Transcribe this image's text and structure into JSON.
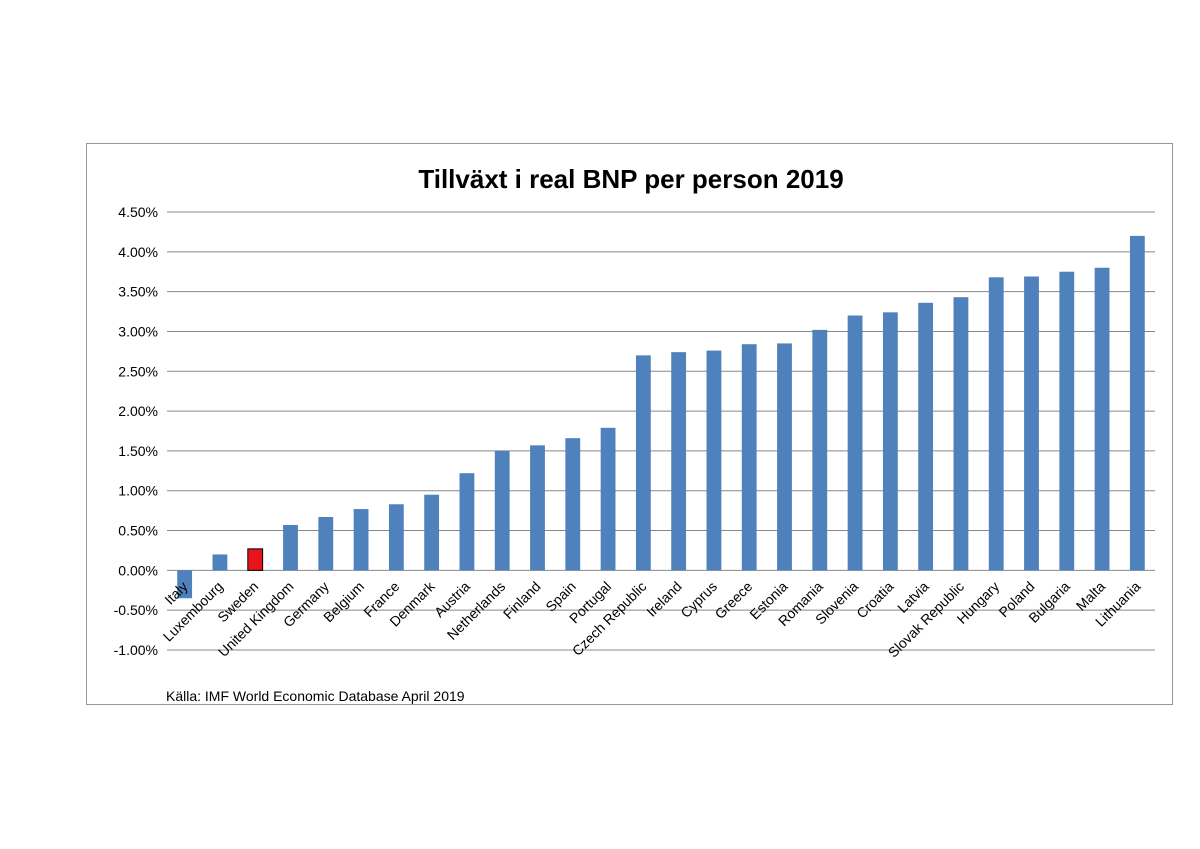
{
  "chart_data": {
    "type": "bar",
    "title": "Tillväxt i real BNP per person 2019",
    "source": "Källa: IMF World Economic Database April 2019",
    "xlabel": "",
    "ylabel": "",
    "ylim": [
      -0.01,
      0.045
    ],
    "ytick_step": 0.005,
    "grid": true,
    "colors": {
      "default": "#4f81bd",
      "highlight": "#e8141b",
      "grid": "#888888"
    },
    "highlight_category": "Sweden",
    "categories": [
      "Italy",
      "Luxembourg",
      "Sweden",
      "United Kingdom",
      "Germany",
      "Belgium",
      "France",
      "Denmark",
      "Austria",
      "Netherlands",
      "Finland",
      "Spain",
      "Portugal",
      "Czech Republic",
      "Ireland",
      "Cyprus",
      "Greece",
      "Estonia",
      "Romania",
      "Slovenia",
      "Croatia",
      "Latvia",
      "Slovak Republic",
      "Hungary",
      "Poland",
      "Bulgaria",
      "Malta",
      "Lithuania"
    ],
    "values": [
      -0.0035,
      0.002,
      0.0027,
      0.0057,
      0.0067,
      0.0077,
      0.0083,
      0.0095,
      0.0122,
      0.015,
      0.0157,
      0.0166,
      0.0179,
      0.027,
      0.0274,
      0.0276,
      0.0284,
      0.0285,
      0.0302,
      0.032,
      0.0324,
      0.0336,
      0.0343,
      0.0368,
      0.0369,
      0.0375,
      0.038,
      0.042
    ]
  }
}
